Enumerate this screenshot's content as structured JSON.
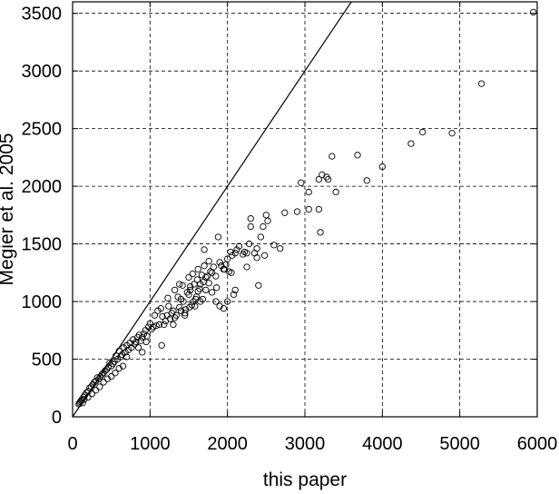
{
  "chart_data": {
    "type": "scatter",
    "title": "",
    "xlabel": "this paper",
    "ylabel": "Megier et al. 2005",
    "xlim": [
      0,
      6000
    ],
    "ylim": [
      0,
      3600
    ],
    "xticks": [
      0,
      1000,
      2000,
      3000,
      4000,
      5000,
      6000
    ],
    "yticks": [
      0,
      500,
      1000,
      1500,
      2000,
      2500,
      3000,
      3500
    ],
    "grid": true,
    "legend": "none",
    "reference_line": {
      "slope": 1,
      "intercept": 0
    },
    "series": [
      {
        "marker": "open-circle",
        "points": [
          [
            5950,
            3510
          ],
          [
            5280,
            2890
          ],
          [
            4900,
            2460
          ],
          [
            4520,
            2470
          ],
          [
            4370,
            2370
          ],
          [
            4000,
            2170
          ],
          [
            3800,
            2050
          ],
          [
            3680,
            2270
          ],
          [
            3400,
            1950
          ],
          [
            3350,
            2260
          ],
          [
            3300,
            2060
          ],
          [
            3280,
            2080
          ],
          [
            3220,
            2100
          ],
          [
            3180,
            2060
          ],
          [
            3180,
            1800
          ],
          [
            3200,
            1600
          ],
          [
            3050,
            1950
          ],
          [
            3050,
            1800
          ],
          [
            2950,
            2030
          ],
          [
            2900,
            1780
          ],
          [
            2740,
            1770
          ],
          [
            2680,
            1460
          ],
          [
            2500,
            1750
          ],
          [
            2520,
            1700
          ],
          [
            2460,
            1650
          ],
          [
            2430,
            1560
          ],
          [
            2380,
            1460
          ],
          [
            2350,
            1420
          ],
          [
            2300,
            1720
          ],
          [
            2300,
            1650
          ],
          [
            2280,
            1500
          ],
          [
            2250,
            1420
          ],
          [
            2220,
            1430
          ],
          [
            2200,
            1410
          ],
          [
            2150,
            1480
          ],
          [
            2120,
            1450
          ],
          [
            2100,
            1420
          ],
          [
            2060,
            1400
          ],
          [
            2040,
            1430
          ],
          [
            2000,
            1370
          ],
          [
            1980,
            1320
          ],
          [
            1960,
            1280
          ],
          [
            1920,
            1310
          ],
          [
            1900,
            1340
          ],
          [
            1880,
            1560
          ],
          [
            1850,
            1220
          ],
          [
            1820,
            1300
          ],
          [
            1800,
            1250
          ],
          [
            1780,
            1260
          ],
          [
            1760,
            1350
          ],
          [
            1740,
            1220
          ],
          [
            1720,
            1210
          ],
          [
            1700,
            1450
          ],
          [
            1690,
            1170
          ],
          [
            1670,
            1230
          ],
          [
            1650,
            1150
          ],
          [
            1640,
            1110
          ],
          [
            1620,
            1090
          ],
          [
            1610,
            1190
          ],
          [
            1600,
            1040
          ],
          [
            1590,
            1020
          ],
          [
            1570,
            1150
          ],
          [
            1560,
            1000
          ],
          [
            1540,
            970
          ],
          [
            1520,
            1130
          ],
          [
            1510,
            950
          ],
          [
            1500,
            1060
          ],
          [
            1480,
            1080
          ],
          [
            1460,
            930
          ],
          [
            1450,
            900
          ],
          [
            1430,
            1000
          ],
          [
            1400,
            1020
          ],
          [
            1380,
            950
          ],
          [
            1360,
            1040
          ],
          [
            1340,
            880
          ],
          [
            1320,
            860
          ],
          [
            1300,
            920
          ],
          [
            1280,
            900
          ],
          [
            1260,
            850
          ],
          [
            1240,
            960
          ],
          [
            1220,
            880
          ],
          [
            1200,
            830
          ],
          [
            1180,
            800
          ],
          [
            1160,
            870
          ],
          [
            1140,
            940
          ],
          [
            1120,
            800
          ],
          [
            1100,
            920
          ],
          [
            1080,
            790
          ],
          [
            1060,
            880
          ],
          [
            1040,
            780
          ],
          [
            1020,
            760
          ],
          [
            1000,
            810
          ],
          [
            980,
            780
          ],
          [
            960,
            700
          ],
          [
            940,
            750
          ],
          [
            920,
            720
          ],
          [
            900,
            690
          ],
          [
            880,
            660
          ],
          [
            860,
            710
          ],
          [
            840,
            690
          ],
          [
            820,
            650
          ],
          [
            800,
            630
          ],
          [
            780,
            670
          ],
          [
            760,
            600
          ],
          [
            740,
            640
          ],
          [
            720,
            580
          ],
          [
            700,
            620
          ],
          [
            680,
            560
          ],
          [
            660,
            600
          ],
          [
            640,
            540
          ],
          [
            620,
            520
          ],
          [
            600,
            570
          ],
          [
            580,
            500
          ],
          [
            560,
            530
          ],
          [
            540,
            480
          ],
          [
            520,
            460
          ],
          [
            500,
            440
          ],
          [
            480,
            470
          ],
          [
            460,
            430
          ],
          [
            440,
            410
          ],
          [
            420,
            400
          ],
          [
            400,
            380
          ],
          [
            380,
            370
          ],
          [
            360,
            350
          ],
          [
            340,
            330
          ],
          [
            320,
            340
          ],
          [
            300,
            310
          ],
          [
            280,
            300
          ],
          [
            260,
            280
          ],
          [
            240,
            260
          ],
          [
            220,
            250
          ],
          [
            200,
            220
          ],
          [
            180,
            210
          ],
          [
            160,
            190
          ],
          [
            140,
            170
          ],
          [
            120,
            150
          ],
          [
            110,
            140
          ],
          [
            100,
            130
          ],
          [
            90,
            120
          ],
          [
            80,
            110
          ],
          [
            2400,
            1140
          ],
          [
            2080,
            1060
          ],
          [
            2100,
            1100
          ],
          [
            2050,
            1250
          ],
          [
            1950,
            940
          ],
          [
            1900,
            960
          ],
          [
            1850,
            1000
          ],
          [
            2000,
            1000
          ],
          [
            1650,
            1000
          ],
          [
            1580,
            960
          ],
          [
            1520,
            1100
          ],
          [
            1450,
            880
          ],
          [
            1400,
            920
          ],
          [
            1680,
            1020
          ],
          [
            1720,
            1100
          ],
          [
            1760,
            1160
          ],
          [
            1800,
            1080
          ],
          [
            1860,
            1120
          ],
          [
            1950,
            1280
          ],
          [
            2020,
            1260
          ],
          [
            2250,
            1300
          ],
          [
            2380,
            1380
          ],
          [
            2480,
            1400
          ],
          [
            2600,
            1490
          ],
          [
            1150,
            620
          ],
          [
            1300,
            800
          ],
          [
            1230,
            1030
          ],
          [
            1500,
            1210
          ],
          [
            1550,
            1240
          ],
          [
            1620,
            1280
          ],
          [
            1700,
            1310
          ],
          [
            1420,
            1140
          ],
          [
            1380,
            1150
          ],
          [
            1320,
            1100
          ],
          [
            950,
            650
          ],
          [
            900,
            560
          ],
          [
            850,
            600
          ],
          [
            700,
            520
          ],
          [
            650,
            440
          ],
          [
            600,
            420
          ],
          [
            550,
            380
          ],
          [
            500,
            350
          ],
          [
            450,
            330
          ],
          [
            400,
            300
          ],
          [
            350,
            260
          ],
          [
            300,
            230
          ],
          [
            250,
            200
          ],
          [
            200,
            170
          ],
          [
            150,
            150
          ],
          [
            130,
            120
          ]
        ]
      }
    ]
  }
}
